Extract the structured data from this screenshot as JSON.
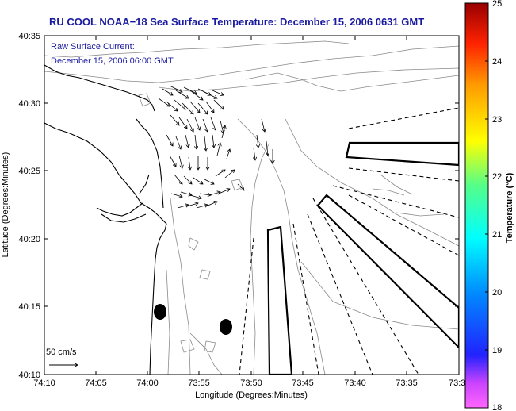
{
  "title": "RU COOL  NOAA−18  Sea Surface Temperature:  December 15, 2006 0631 GMT",
  "annotation": {
    "line1": "Raw Surface Current:",
    "line2": "December 15, 2006 06:00 GMT"
  },
  "scale_arrow_label": "50 cm/s",
  "axes": {
    "xlabel": "Longitude (Degrees:Minutes)",
    "ylabel": "Latitude (Degrees:Minutes)",
    "xticks": [
      "74:10",
      "74:05",
      "74:00",
      "73:55",
      "73:50",
      "73:45",
      "73:40",
      "73:35",
      "73:3"
    ],
    "yticks": [
      "40:35",
      "40:30",
      "40:25",
      "40:20",
      "40:15",
      "40:10"
    ]
  },
  "colorbar": {
    "label": "Temperature (°C)",
    "ticks": [
      "25",
      "24",
      "23",
      "22",
      "21",
      "20",
      "19",
      "18"
    ],
    "min": 18,
    "max": 25
  },
  "colors": {
    "title": "#1a1aa0",
    "annotation": "#1a1aa0",
    "coast": "#000000",
    "bathymetry": "#808080"
  }
}
